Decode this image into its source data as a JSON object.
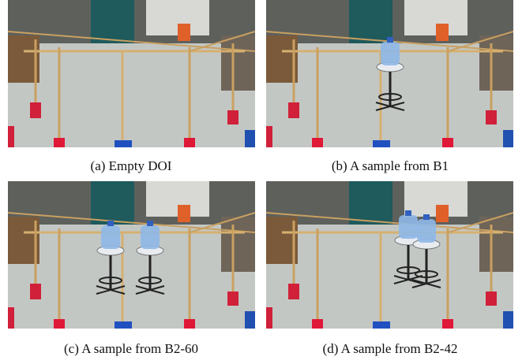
{
  "figures": [
    {
      "caption": "(a) Empty DOI"
    },
    {
      "caption": "(b) A sample from B1"
    },
    {
      "caption": "(c) A sample from B2-60"
    },
    {
      "caption": "(d) A sample from B2-42"
    }
  ]
}
